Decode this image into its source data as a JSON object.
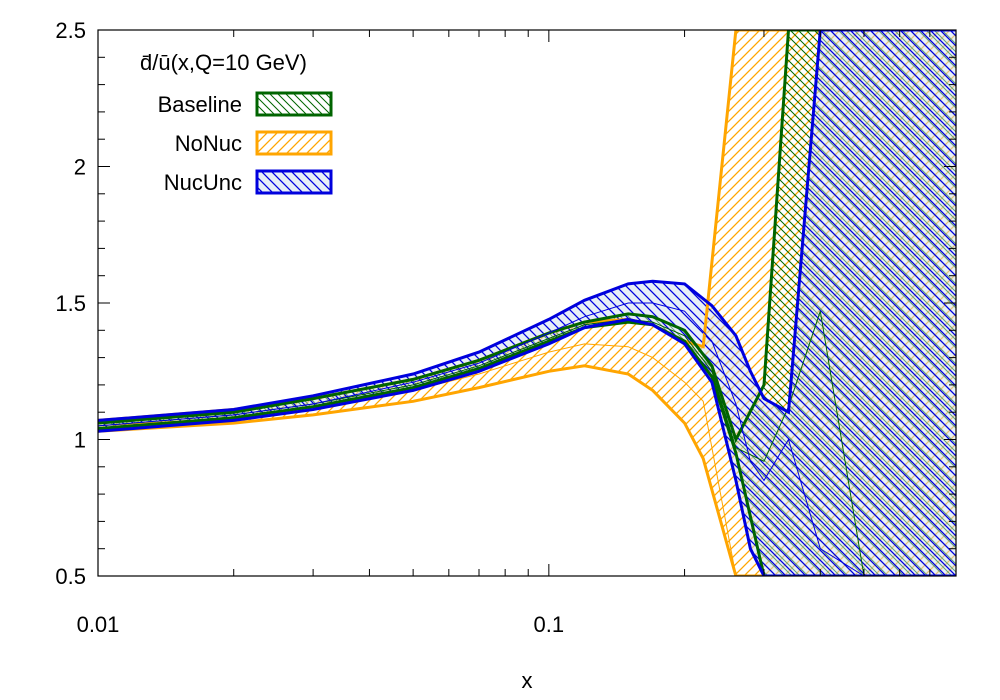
{
  "chart_data": {
    "type": "area",
    "title": "d̄/ū(x,Q=10 GeV)",
    "xlabel": "x",
    "ylabel": "",
    "xscale": "log",
    "xlim": [
      0.01,
      0.8
    ],
    "ylim": [
      0.5,
      2.5
    ],
    "x_ticks": [
      {
        "value": 0.01,
        "label": "0.01"
      },
      {
        "value": 0.1,
        "label": "0.1"
      }
    ],
    "y_ticks": [
      {
        "value": 0.5,
        "label": "0.5"
      },
      {
        "value": 1,
        "label": "1"
      },
      {
        "value": 1.5,
        "label": "1.5"
      },
      {
        "value": 2,
        "label": "2"
      },
      {
        "value": 2.5,
        "label": "2.5"
      }
    ],
    "legend_position": "top-left",
    "grid": false,
    "series": [
      {
        "name": "Baseline",
        "color": "#006400",
        "hatch": "backslash",
        "x": [
          0.01,
          0.02,
          0.03,
          0.05,
          0.07,
          0.1,
          0.12,
          0.15,
          0.17,
          0.2,
          0.23,
          0.26,
          0.3,
          0.34,
          0.4,
          0.5,
          0.8
        ],
        "lower": [
          1.04,
          1.08,
          1.12,
          1.19,
          1.26,
          1.36,
          1.41,
          1.43,
          1.42,
          1.36,
          1.23,
          0.95,
          0.5,
          0.5,
          0.5,
          0.5,
          0.5
        ],
        "upper": [
          1.06,
          1.1,
          1.15,
          1.22,
          1.29,
          1.39,
          1.43,
          1.46,
          1.45,
          1.4,
          1.27,
          1.0,
          1.2,
          2.5,
          2.5,
          2.5,
          2.5
        ],
        "central": [
          1.05,
          1.09,
          1.13,
          1.2,
          1.27,
          1.37,
          1.42,
          1.44,
          1.43,
          1.38,
          1.25,
          0.97,
          0.92,
          1.12,
          1.47,
          0.5,
          0.5
        ]
      },
      {
        "name": "NoNuc",
        "color": "#FFA500",
        "hatch": "slash",
        "x": [
          0.01,
          0.02,
          0.03,
          0.05,
          0.07,
          0.1,
          0.12,
          0.15,
          0.17,
          0.2,
          0.22,
          0.26,
          0.3,
          0.34,
          0.4,
          0.5,
          0.8
        ],
        "lower": [
          1.03,
          1.06,
          1.09,
          1.14,
          1.19,
          1.25,
          1.27,
          1.24,
          1.18,
          1.06,
          0.93,
          0.5,
          0.5,
          0.5,
          0.5,
          0.5,
          0.5
        ],
        "upper": [
          1.07,
          1.11,
          1.15,
          1.22,
          1.29,
          1.39,
          1.43,
          1.44,
          1.42,
          1.36,
          1.34,
          2.5,
          2.5,
          2.5,
          2.5,
          2.5,
          2.5
        ],
        "central": [
          1.05,
          1.08,
          1.12,
          1.18,
          1.24,
          1.32,
          1.35,
          1.34,
          1.3,
          1.21,
          1.14,
          0.5,
          0.5,
          0.5,
          0.5,
          0.5,
          0.5
        ]
      },
      {
        "name": "NucUnc",
        "color": "#0000DD",
        "hatch": "backslash",
        "x": [
          0.01,
          0.02,
          0.03,
          0.05,
          0.07,
          0.1,
          0.12,
          0.15,
          0.17,
          0.2,
          0.23,
          0.26,
          0.28,
          0.3,
          0.34,
          0.4,
          0.5,
          0.8
        ],
        "lower": [
          1.03,
          1.07,
          1.11,
          1.18,
          1.25,
          1.35,
          1.41,
          1.44,
          1.42,
          1.35,
          1.21,
          0.85,
          0.6,
          0.5,
          0.5,
          0.5,
          0.5,
          0.5
        ],
        "upper": [
          1.07,
          1.11,
          1.16,
          1.24,
          1.32,
          1.44,
          1.51,
          1.57,
          1.58,
          1.57,
          1.49,
          1.38,
          1.25,
          1.15,
          1.1,
          2.5,
          2.5,
          2.5
        ],
        "central": [
          1.05,
          1.09,
          1.13,
          1.21,
          1.28,
          1.39,
          1.45,
          1.5,
          1.5,
          1.47,
          1.36,
          1.13,
          0.92,
          0.85,
          1.0,
          0.6,
          0.5,
          0.5
        ]
      }
    ]
  }
}
